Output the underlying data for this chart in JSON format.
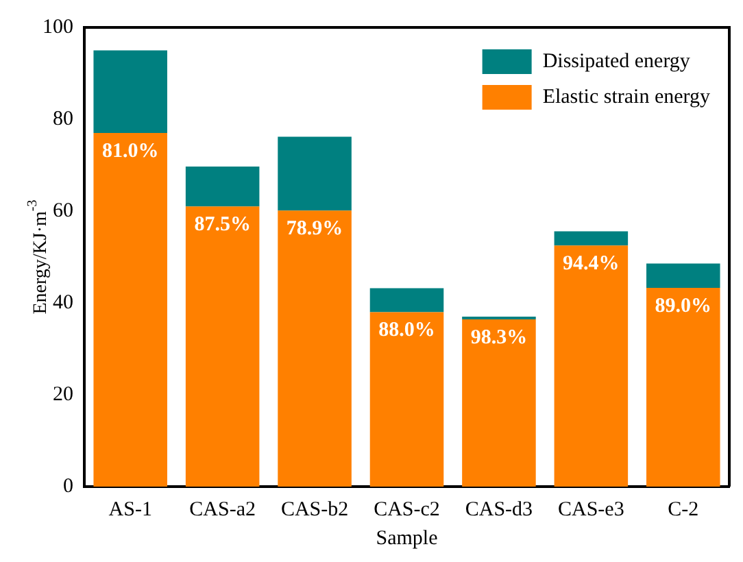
{
  "chart_data": {
    "type": "bar",
    "stacked": true,
    "xlabel": "Sample",
    "ylabel": "Energy/KJ·m$^{-3}$",
    "categories": [
      "AS-1",
      "CAS-a2",
      "CAS-b2",
      "CAS-c2",
      "CAS-d3",
      "CAS-e3",
      "C-2"
    ],
    "series": [
      {
        "name": "Elastic strain energy",
        "color": "#ff8000",
        "values": [
          77,
          61,
          60.1,
          38,
          36.4,
          52.5,
          43.3
        ]
      },
      {
        "name": "Dissipated energy",
        "color": "#008080",
        "values": [
          18,
          8.7,
          16.1,
          5.2,
          0.6,
          3.1,
          5.3
        ]
      }
    ],
    "annotations": [
      {
        "text": "81.0%",
        "x": "AS-1",
        "y": 77
      },
      {
        "text": "87.5%",
        "x": "CAS-a2",
        "y": 61
      },
      {
        "text": "78.9%",
        "x": "CAS-b2",
        "y": 60.1
      },
      {
        "text": "88.0%",
        "x": "CAS-c2",
        "y": 38
      },
      {
        "text": "98.3%",
        "x": "CAS-d3",
        "y": 36.4
      },
      {
        "text": "94.4%",
        "x": "CAS-e3",
        "y": 52.5
      },
      {
        "text": "89.0%",
        "x": "C-2",
        "y": 43.3
      }
    ],
    "ylim": [
      0,
      100
    ],
    "yticks": [
      0,
      20,
      40,
      60,
      80,
      100
    ],
    "grid": false,
    "legend": "top right"
  }
}
